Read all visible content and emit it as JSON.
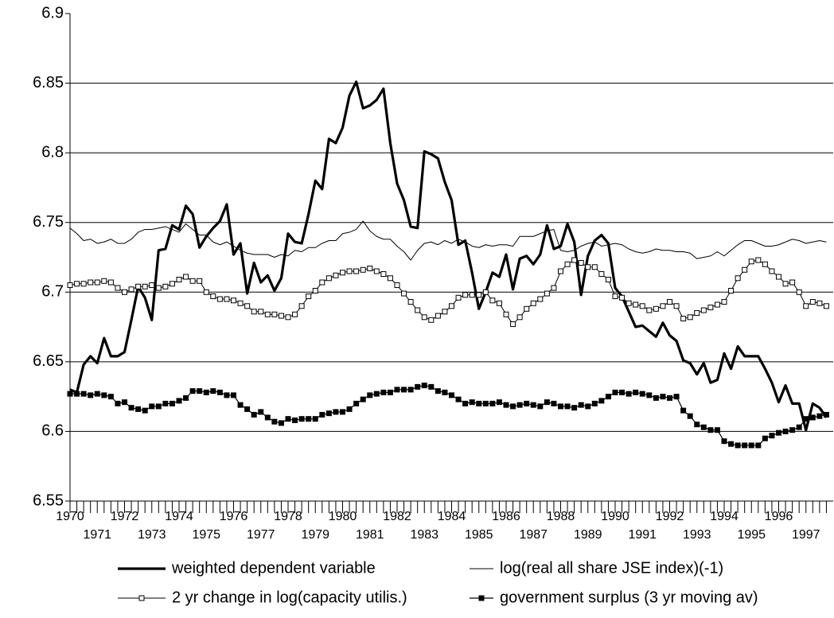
{
  "chart_data": {
    "type": "line",
    "categories": [
      "1970",
      null,
      null,
      null,
      "1971",
      null,
      null,
      null,
      "1972",
      null,
      null,
      null,
      "1973",
      null,
      null,
      null,
      "1974",
      null,
      null,
      null,
      "1975",
      null,
      null,
      null,
      "1976",
      null,
      null,
      null,
      "1977",
      null,
      null,
      null,
      "1978",
      null,
      null,
      null,
      "1979",
      null,
      null,
      null,
      "1980",
      null,
      null,
      null,
      "1981",
      null,
      null,
      null,
      "1982",
      null,
      null,
      null,
      "1983",
      null,
      null,
      null,
      "1984",
      null,
      null,
      null,
      "1985",
      null,
      null,
      null,
      "1986",
      null,
      null,
      null,
      "1987",
      null,
      null,
      null,
      "1988",
      null,
      null,
      null,
      "1989",
      null,
      null,
      null,
      "1990",
      null,
      null,
      null,
      "1991",
      null,
      null,
      null,
      "1992",
      null,
      null,
      null,
      "1993",
      null,
      null,
      null,
      "1994",
      null,
      null,
      null,
      "1995",
      null,
      null,
      null,
      "1996",
      null,
      null,
      null,
      "1997",
      null,
      null,
      null
    ],
    "ylim": [
      6.55,
      6.9
    ],
    "yticks": [
      6.55,
      6.6,
      6.65,
      6.7,
      6.75,
      6.8,
      6.85,
      6.9
    ],
    "grid": true,
    "series": [
      {
        "name": "weighted dependent variable",
        "color": "#000000",
        "marker": "none",
        "values": [
          6.63,
          6.628,
          6.648,
          6.654,
          6.649,
          6.667,
          6.654,
          6.654,
          6.657,
          6.68,
          6.704,
          6.696,
          6.68,
          6.73,
          6.731,
          6.748,
          6.745,
          6.762,
          6.756,
          6.732,
          6.74,
          6.746,
          6.751,
          6.763,
          6.727,
          6.735,
          6.699,
          6.721,
          6.707,
          6.712,
          6.701,
          6.71,
          6.742,
          6.736,
          6.735,
          6.756,
          6.78,
          6.774,
          6.81,
          6.807,
          6.818,
          6.841,
          6.851,
          6.832,
          6.834,
          6.838,
          6.846,
          6.807,
          6.778,
          6.766,
          6.747,
          6.746,
          6.801,
          6.799,
          6.796,
          6.779,
          6.766,
          6.734,
          6.737,
          6.714,
          6.688,
          6.7,
          6.714,
          6.711,
          6.727,
          6.702,
          6.724,
          6.726,
          6.72,
          6.727,
          6.748,
          6.731,
          6.733,
          6.749,
          6.736,
          6.698,
          6.726,
          6.737,
          6.741,
          6.735,
          6.703,
          6.697,
          6.686,
          6.675,
          6.676,
          6.672,
          6.668,
          6.678,
          6.669,
          6.665,
          6.651,
          6.649,
          6.641,
          6.649,
          6.635,
          6.637,
          6.656,
          6.645,
          6.661,
          6.654,
          6.654,
          6.654,
          6.645,
          6.635,
          6.621,
          6.633,
          6.62,
          6.62,
          6.601,
          6.62,
          6.617,
          6.61
        ]
      },
      {
        "name": "log(real all share JSE index)(-1)",
        "color": "#000000",
        "marker": "none",
        "values": [
          6.746,
          6.742,
          6.737,
          6.738,
          6.735,
          6.736,
          6.738,
          6.735,
          6.735,
          6.738,
          6.743,
          6.745,
          6.745,
          6.746,
          6.747,
          6.745,
          6.743,
          6.749,
          6.745,
          6.741,
          6.741,
          6.736,
          6.734,
          6.736,
          6.733,
          6.73,
          6.728,
          6.727,
          6.727,
          6.727,
          6.725,
          6.727,
          6.726,
          6.73,
          6.729,
          6.732,
          6.732,
          6.735,
          6.737,
          6.737,
          6.742,
          6.743,
          6.745,
          6.751,
          6.744,
          6.74,
          6.738,
          6.738,
          6.733,
          6.729,
          6.723,
          6.73,
          6.735,
          6.736,
          6.734,
          6.737,
          6.735,
          6.738,
          6.736,
          6.733,
          6.732,
          6.734,
          6.733,
          6.734,
          6.734,
          6.733,
          6.74,
          6.74,
          6.74,
          6.742,
          6.744,
          6.745,
          6.73,
          6.729,
          6.73,
          6.733,
          6.735,
          6.736,
          6.733,
          6.734,
          6.735,
          6.734,
          6.731,
          6.729,
          6.728,
          6.729,
          6.731,
          6.73,
          6.73,
          6.729,
          6.729,
          6.728,
          6.724,
          6.725,
          6.726,
          6.729,
          6.726,
          6.73,
          6.734,
          6.737,
          6.737,
          6.735,
          6.733,
          6.733,
          6.734,
          6.736,
          6.738,
          6.737,
          6.735,
          6.736,
          6.737,
          6.736
        ]
      },
      {
        "name": "2 yr change in log(capacity utilis.)",
        "color": "#000000",
        "marker": "square",
        "marker_fill": "#ffffff",
        "values": [
          6.705,
          6.706,
          6.706,
          6.707,
          6.707,
          6.708,
          6.707,
          6.703,
          6.7,
          6.702,
          6.704,
          6.704,
          6.705,
          6.703,
          6.704,
          6.706,
          6.709,
          6.711,
          6.708,
          6.708,
          6.7,
          6.697,
          6.695,
          6.695,
          6.694,
          6.692,
          6.69,
          6.686,
          6.686,
          6.684,
          6.684,
          6.683,
          6.682,
          6.684,
          6.69,
          6.697,
          6.701,
          6.707,
          6.71,
          6.712,
          6.714,
          6.715,
          6.715,
          6.716,
          6.717,
          6.715,
          6.713,
          6.71,
          6.705,
          6.699,
          6.693,
          6.687,
          6.682,
          6.68,
          6.683,
          6.686,
          6.69,
          6.696,
          6.698,
          6.698,
          6.698,
          6.7,
          6.694,
          6.692,
          6.684,
          6.677,
          6.682,
          6.688,
          6.692,
          6.695,
          6.699,
          6.703,
          6.715,
          6.72,
          6.723,
          6.721,
          6.718,
          6.718,
          6.713,
          6.709,
          6.697,
          6.696,
          6.692,
          6.691,
          6.69,
          6.687,
          6.688,
          6.69,
          6.693,
          6.69,
          6.681,
          6.682,
          6.685,
          6.687,
          6.689,
          6.691,
          6.693,
          6.701,
          6.71,
          6.716,
          6.722,
          6.723,
          6.72,
          6.715,
          6.711,
          6.706,
          6.707,
          6.7,
          6.69,
          6.693,
          6.692,
          6.69
        ]
      },
      {
        "name": "government surplus (3 yr moving av)",
        "color": "#000000",
        "marker": "square",
        "marker_fill": "#000000",
        "values": [
          6.627,
          6.627,
          6.627,
          6.626,
          6.627,
          6.626,
          6.625,
          6.62,
          6.621,
          6.617,
          6.616,
          6.615,
          6.618,
          6.618,
          6.62,
          6.62,
          6.622,
          6.624,
          6.629,
          6.629,
          6.628,
          6.629,
          6.628,
          6.626,
          6.626,
          6.619,
          6.616,
          6.612,
          6.614,
          6.61,
          6.607,
          6.606,
          6.609,
          6.608,
          6.609,
          6.609,
          6.609,
          6.612,
          6.613,
          6.614,
          6.614,
          6.616,
          6.62,
          6.623,
          6.626,
          6.627,
          6.628,
          6.628,
          6.63,
          6.63,
          6.63,
          6.632,
          6.633,
          6.632,
          6.629,
          6.628,
          6.626,
          6.623,
          6.62,
          6.621,
          6.62,
          6.62,
          6.62,
          6.621,
          6.619,
          6.618,
          6.619,
          6.62,
          6.619,
          6.618,
          6.621,
          6.62,
          6.618,
          6.618,
          6.617,
          6.619,
          6.618,
          6.62,
          6.622,
          6.625,
          6.628,
          6.628,
          6.627,
          6.628,
          6.627,
          6.626,
          6.624,
          6.625,
          6.624,
          6.625,
          6.615,
          6.611,
          6.605,
          6.603,
          6.601,
          6.601,
          6.593,
          6.591,
          6.59,
          6.59,
          6.59,
          6.59,
          6.595,
          6.597,
          6.599,
          6.6,
          6.601,
          6.603,
          6.609,
          6.61,
          6.611,
          6.612
        ]
      }
    ]
  }
}
